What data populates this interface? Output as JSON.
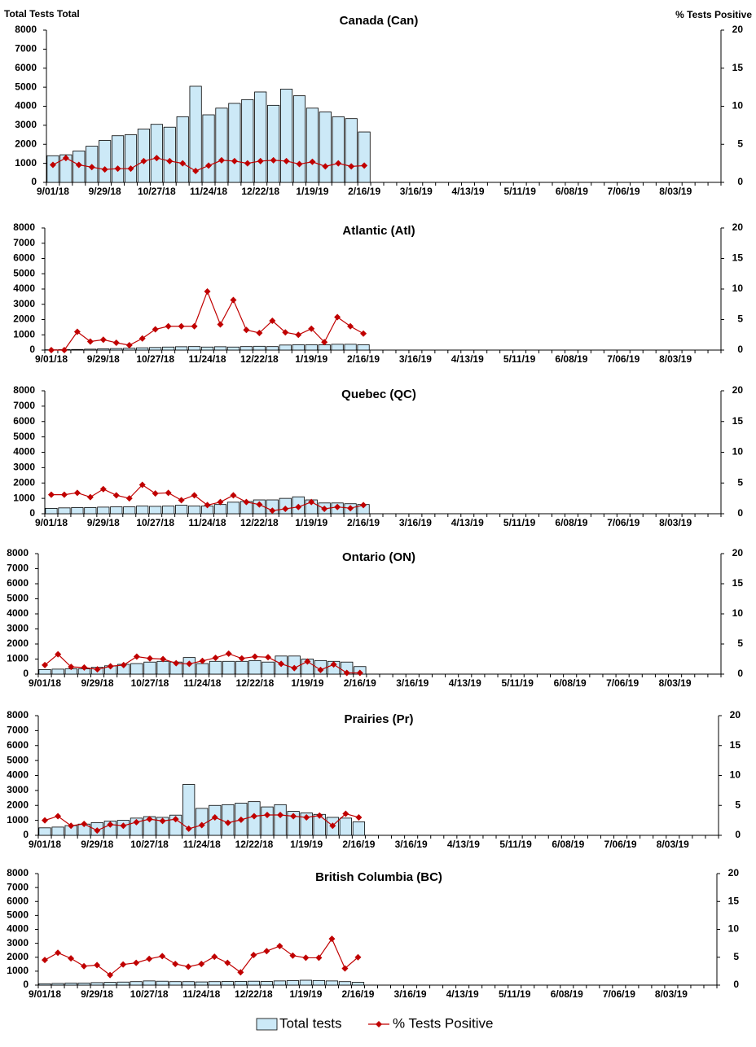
{
  "chart_data": [
    {
      "type": "bar-line",
      "title": "Canada (Can)",
      "y_label": "Total Tests Total",
      "y2_label": "% Tests Positive",
      "categories": [
        "9/01/18",
        null,
        null,
        null,
        "9/29/18",
        null,
        null,
        null,
        "10/27/18",
        null,
        null,
        null,
        "11/24/18",
        null,
        null,
        null,
        "12/22/18",
        null,
        null,
        null,
        "1/19/19",
        null,
        null,
        null,
        "2/16/19",
        null,
        null,
        null,
        "3/16/19",
        null,
        null,
        null,
        "4/13/19",
        null,
        null,
        null,
        "5/11/19",
        null,
        null,
        null,
        "6/08/19",
        null,
        null,
        null,
        "7/06/19",
        null,
        null,
        null,
        "8/03/19",
        null,
        null,
        null
      ],
      "series": [
        {
          "name": "Total tests",
          "color": "#cce9f7",
          "values": [
            1400,
            1450,
            1650,
            1900,
            2200,
            2450,
            2500,
            2800,
            3050,
            2900,
            3450,
            5050,
            3550,
            3900,
            4150,
            4350,
            4750,
            4050,
            4900,
            4550,
            3900,
            3700,
            3450,
            3350,
            2650,
            null,
            null,
            null,
            null,
            null,
            null,
            null,
            null,
            null,
            null,
            null,
            null,
            null,
            null,
            null,
            null,
            null,
            null,
            null,
            null,
            null,
            null,
            null,
            null,
            null,
            null,
            null
          ]
        },
        {
          "name": "% Tests Positive",
          "color": "#c00000",
          "axis": "y2",
          "values": [
            2.3,
            3.2,
            2.3,
            2.0,
            1.7,
            1.8,
            1.8,
            2.8,
            3.2,
            2.8,
            2.5,
            1.5,
            2.2,
            2.9,
            2.8,
            2.5,
            2.8,
            2.9,
            2.8,
            2.4,
            2.7,
            2.1,
            2.5,
            2.1,
            2.2,
            null,
            null,
            null,
            null,
            null,
            null,
            null,
            null,
            null,
            null,
            null,
            null,
            null,
            null,
            null,
            null,
            null,
            null,
            null,
            null,
            null,
            null,
            null,
            null,
            null,
            null,
            null
          ]
        }
      ],
      "ylim": [
        0,
        8000
      ],
      "yticks": [
        0,
        1000,
        2000,
        3000,
        4000,
        5000,
        6000,
        7000,
        8000
      ],
      "y2lim": [
        0,
        20
      ],
      "y2ticks": [
        0,
        5,
        10,
        15,
        20
      ]
    },
    {
      "type": "bar-line",
      "title": "Atlantic (Atl)",
      "categories": [
        "9/01/18",
        null,
        null,
        null,
        "9/29/18",
        null,
        null,
        null,
        "10/27/18",
        null,
        null,
        null,
        "11/24/18",
        null,
        null,
        null,
        "12/22/18",
        null,
        null,
        null,
        "1/19/19",
        null,
        null,
        null,
        "2/16/19",
        null,
        null,
        null,
        "3/16/19",
        null,
        null,
        null,
        "4/13/19",
        null,
        null,
        null,
        "5/11/19",
        null,
        null,
        null,
        "6/08/19",
        null,
        null,
        null,
        "7/06/19",
        null,
        null,
        null,
        "8/03/19",
        null,
        null,
        null
      ],
      "series": [
        {
          "color": "#cce9f7",
          "values": [
            20,
            30,
            40,
            60,
            80,
            100,
            120,
            150,
            170,
            200,
            220,
            230,
            200,
            220,
            200,
            230,
            250,
            230,
            330,
            350,
            350,
            350,
            380,
            380,
            350,
            null,
            null,
            null,
            null,
            null,
            null,
            null,
            null,
            null,
            null,
            null,
            null,
            null,
            null,
            null,
            null,
            null,
            null,
            null,
            null,
            null,
            null,
            null,
            null,
            null,
            null,
            null
          ]
        },
        {
          "color": "#c00000",
          "axis": "y2",
          "values": [
            0,
            0,
            3.0,
            1.4,
            1.7,
            1.2,
            0.8,
            1.9,
            3.4,
            3.9,
            3.9,
            3.9,
            9.6,
            4.2,
            8.2,
            3.3,
            2.8,
            4.8,
            2.9,
            2.5,
            3.5,
            1.3,
            5.4,
            3.9,
            2.7,
            null,
            null,
            null,
            null,
            null,
            null,
            null,
            null,
            null,
            null,
            null,
            null,
            null,
            null,
            null,
            null,
            null,
            null,
            null,
            null,
            null,
            null,
            null,
            null,
            null,
            null,
            null
          ]
        }
      ],
      "ylim": [
        0,
        8000
      ],
      "yticks": [
        0,
        1000,
        2000,
        3000,
        4000,
        5000,
        6000,
        7000,
        8000
      ],
      "y2lim": [
        0,
        20
      ],
      "y2ticks": [
        0,
        5,
        10,
        15,
        20
      ]
    },
    {
      "type": "bar-line",
      "title": "Quebec (QC)",
      "categories": [
        "9/01/18",
        null,
        null,
        null,
        "9/29/18",
        null,
        null,
        null,
        "10/27/18",
        null,
        null,
        null,
        "11/24/18",
        null,
        null,
        null,
        "12/22/18",
        null,
        null,
        null,
        "1/19/19",
        null,
        null,
        null,
        "2/16/19",
        null,
        null,
        null,
        "3/16/19",
        null,
        null,
        null,
        "4/13/19",
        null,
        null,
        null,
        "5/11/19",
        null,
        null,
        null,
        "6/08/19",
        null,
        null,
        null,
        "7/06/19",
        null,
        null,
        null,
        "8/03/19",
        null,
        null,
        null
      ],
      "series": [
        {
          "color": "#cce9f7",
          "values": [
            350,
            380,
            400,
            400,
            430,
            450,
            450,
            500,
            480,
            500,
            550,
            500,
            500,
            600,
            750,
            800,
            900,
            900,
            1000,
            1100,
            900,
            700,
            700,
            650,
            600,
            null,
            null,
            null,
            null,
            null,
            null,
            null,
            null,
            null,
            null,
            null,
            null,
            null,
            null,
            null,
            null,
            null,
            null,
            null,
            null,
            null,
            null,
            null,
            null,
            null,
            null,
            null
          ]
        },
        {
          "color": "#c00000",
          "axis": "y2",
          "values": [
            3.1,
            3.1,
            3.4,
            2.7,
            4.0,
            3.0,
            2.5,
            4.7,
            3.3,
            3.4,
            2.2,
            3.0,
            1.4,
            1.9,
            3.0,
            1.9,
            1.5,
            0.5,
            0.8,
            1.1,
            1.9,
            0.8,
            1.1,
            0.9,
            1.4,
            null,
            null,
            null,
            null,
            null,
            null,
            null,
            null,
            null,
            null,
            null,
            null,
            null,
            null,
            null,
            null,
            null,
            null,
            null,
            null,
            null,
            null,
            null,
            null,
            null,
            null,
            null
          ]
        }
      ],
      "ylim": [
        0,
        8000
      ],
      "yticks": [
        0,
        1000,
        2000,
        3000,
        4000,
        5000,
        6000,
        7000,
        8000
      ],
      "y2lim": [
        0,
        20
      ],
      "y2ticks": [
        0,
        5,
        10,
        15,
        20
      ]
    },
    {
      "type": "bar-line",
      "title": "Ontario (ON)",
      "categories": [
        "9/01/18",
        null,
        null,
        null,
        "9/29/18",
        null,
        null,
        null,
        "10/27/18",
        null,
        null,
        null,
        "11/24/18",
        null,
        null,
        null,
        "12/22/18",
        null,
        null,
        null,
        "1/19/19",
        null,
        null,
        null,
        "2/16/19",
        null,
        null,
        null,
        "3/16/19",
        null,
        null,
        null,
        "4/13/19",
        null,
        null,
        null,
        "5/11/19",
        null,
        null,
        null,
        "6/08/19",
        null,
        null,
        null,
        "7/06/19",
        null,
        null,
        null,
        "8/03/19",
        null,
        null,
        null
      ],
      "series": [
        {
          "color": "#cce9f7",
          "values": [
            300,
            330,
            350,
            350,
            450,
            550,
            650,
            700,
            800,
            850,
            800,
            1100,
            700,
            850,
            850,
            850,
            900,
            800,
            1200,
            1200,
            1000,
            900,
            850,
            800,
            500,
            null,
            null,
            null,
            null,
            null,
            null,
            null,
            null,
            null,
            null,
            null,
            null,
            null,
            null,
            null,
            null,
            null,
            null,
            null,
            null,
            null,
            null,
            null,
            null,
            null,
            null,
            null
          ]
        },
        {
          "color": "#c00000",
          "axis": "y2",
          "values": [
            1.5,
            3.3,
            1.2,
            1.1,
            0.8,
            1.3,
            1.5,
            2.9,
            2.6,
            2.5,
            1.8,
            1.7,
            2.2,
            2.7,
            3.4,
            2.6,
            2.9,
            2.8,
            1.7,
            1.0,
            2.1,
            0.7,
            1.6,
            0.2,
            0.2,
            null,
            null,
            null,
            null,
            null,
            null,
            null,
            null,
            null,
            null,
            null,
            null,
            null,
            null,
            null,
            null,
            null,
            null,
            null,
            null,
            null,
            null,
            null,
            null,
            null,
            null,
            null
          ]
        }
      ],
      "ylim": [
        0,
        8000
      ],
      "yticks": [
        0,
        1000,
        2000,
        3000,
        4000,
        5000,
        6000,
        7000,
        8000
      ],
      "y2lim": [
        0,
        20
      ],
      "y2ticks": [
        0,
        5,
        10,
        15,
        20
      ]
    },
    {
      "type": "bar-line",
      "title": "Prairies (Pr)",
      "categories": [
        "9/01/18",
        null,
        null,
        null,
        "9/29/18",
        null,
        null,
        null,
        "10/27/18",
        null,
        null,
        null,
        "11/24/18",
        null,
        null,
        null,
        "12/22/18",
        null,
        null,
        null,
        "1/19/19",
        null,
        null,
        null,
        "2/16/19",
        null,
        null,
        null,
        "3/16/19",
        null,
        null,
        null,
        "4/13/19",
        null,
        null,
        null,
        "5/11/19",
        null,
        null,
        null,
        "6/08/19",
        null,
        null,
        null,
        "7/06/19",
        null,
        null,
        null,
        "8/03/19",
        null,
        null,
        null
      ],
      "series": [
        {
          "color": "#cce9f7",
          "values": [
            500,
            550,
            650,
            750,
            850,
            950,
            1000,
            1150,
            1250,
            1200,
            1350,
            3400,
            1800,
            2000,
            2050,
            2150,
            2250,
            1900,
            2050,
            1600,
            1500,
            1400,
            1200,
            1150,
            900,
            null,
            null,
            null,
            null,
            null,
            null,
            null,
            null,
            null,
            null,
            null,
            null,
            null,
            null,
            null,
            null,
            null,
            null,
            null,
            null,
            null,
            null,
            null,
            null,
            null,
            null,
            null
          ]
        },
        {
          "color": "#c00000",
          "axis": "y2",
          "values": [
            2.5,
            3.2,
            1.6,
            1.9,
            0.8,
            1.8,
            1.6,
            2.2,
            2.7,
            2.4,
            2.7,
            1.1,
            1.7,
            3.0,
            2.1,
            2.6,
            3.2,
            3.4,
            3.4,
            3.2,
            3.0,
            3.3,
            1.6,
            3.6,
            3.0,
            null,
            null,
            null,
            null,
            null,
            null,
            null,
            null,
            null,
            null,
            null,
            null,
            null,
            null,
            null,
            null,
            null,
            null,
            null,
            null,
            null,
            null,
            null,
            null,
            null,
            null,
            null
          ]
        }
      ],
      "ylim": [
        0,
        8000
      ],
      "yticks": [
        0,
        1000,
        2000,
        3000,
        4000,
        5000,
        6000,
        7000,
        8000
      ],
      "y2lim": [
        0,
        20
      ],
      "y2ticks": [
        0,
        5,
        10,
        15,
        20
      ]
    },
    {
      "type": "bar-line",
      "title": "British Columbia (BC)",
      "categories": [
        "9/01/18",
        null,
        null,
        null,
        "9/29/18",
        null,
        null,
        null,
        "10/27/18",
        null,
        null,
        null,
        "11/24/18",
        null,
        null,
        null,
        "12/22/18",
        null,
        null,
        null,
        "1/19/19",
        null,
        null,
        null,
        "2/16/19",
        null,
        null,
        null,
        "3/16/19",
        null,
        null,
        null,
        "4/13/19",
        null,
        null,
        null,
        "5/11/19",
        null,
        null,
        null,
        "6/08/19",
        null,
        null,
        null,
        "7/06/19",
        null,
        null,
        null,
        "8/03/19",
        null,
        null,
        null
      ],
      "series": [
        {
          "color": "#cce9f7",
          "values": [
            100,
            120,
            150,
            150,
            180,
            200,
            220,
            250,
            300,
            280,
            250,
            250,
            230,
            250,
            260,
            270,
            280,
            260,
            300,
            320,
            350,
            330,
            300,
            250,
            200,
            null,
            null,
            null,
            null,
            null,
            null,
            null,
            null,
            null,
            null,
            null,
            null,
            null,
            null,
            null,
            null,
            null,
            null,
            null,
            null,
            null,
            null,
            null,
            null,
            null,
            null,
            null
          ]
        },
        {
          "color": "#c00000",
          "axis": "y2",
          "values": [
            4.5,
            5.8,
            4.8,
            3.4,
            3.6,
            1.8,
            3.7,
            4.0,
            4.7,
            5.2,
            3.8,
            3.3,
            3.8,
            5.1,
            4.0,
            2.3,
            5.4,
            6.1,
            7.0,
            5.3,
            4.9,
            4.9,
            8.3,
            3.0,
            5.0,
            null,
            null,
            null,
            null,
            null,
            null,
            null,
            null,
            null,
            null,
            null,
            null,
            null,
            null,
            null,
            null,
            null,
            null,
            null,
            null,
            null,
            null,
            null,
            null,
            null,
            null,
            null
          ]
        }
      ],
      "ylim": [
        0,
        8000
      ],
      "yticks": [
        0,
        1000,
        2000,
        3000,
        4000,
        5000,
        6000,
        7000,
        8000
      ],
      "y2lim": [
        0,
        20
      ],
      "y2ticks": [
        0,
        5,
        10,
        15,
        20
      ]
    }
  ]
}
